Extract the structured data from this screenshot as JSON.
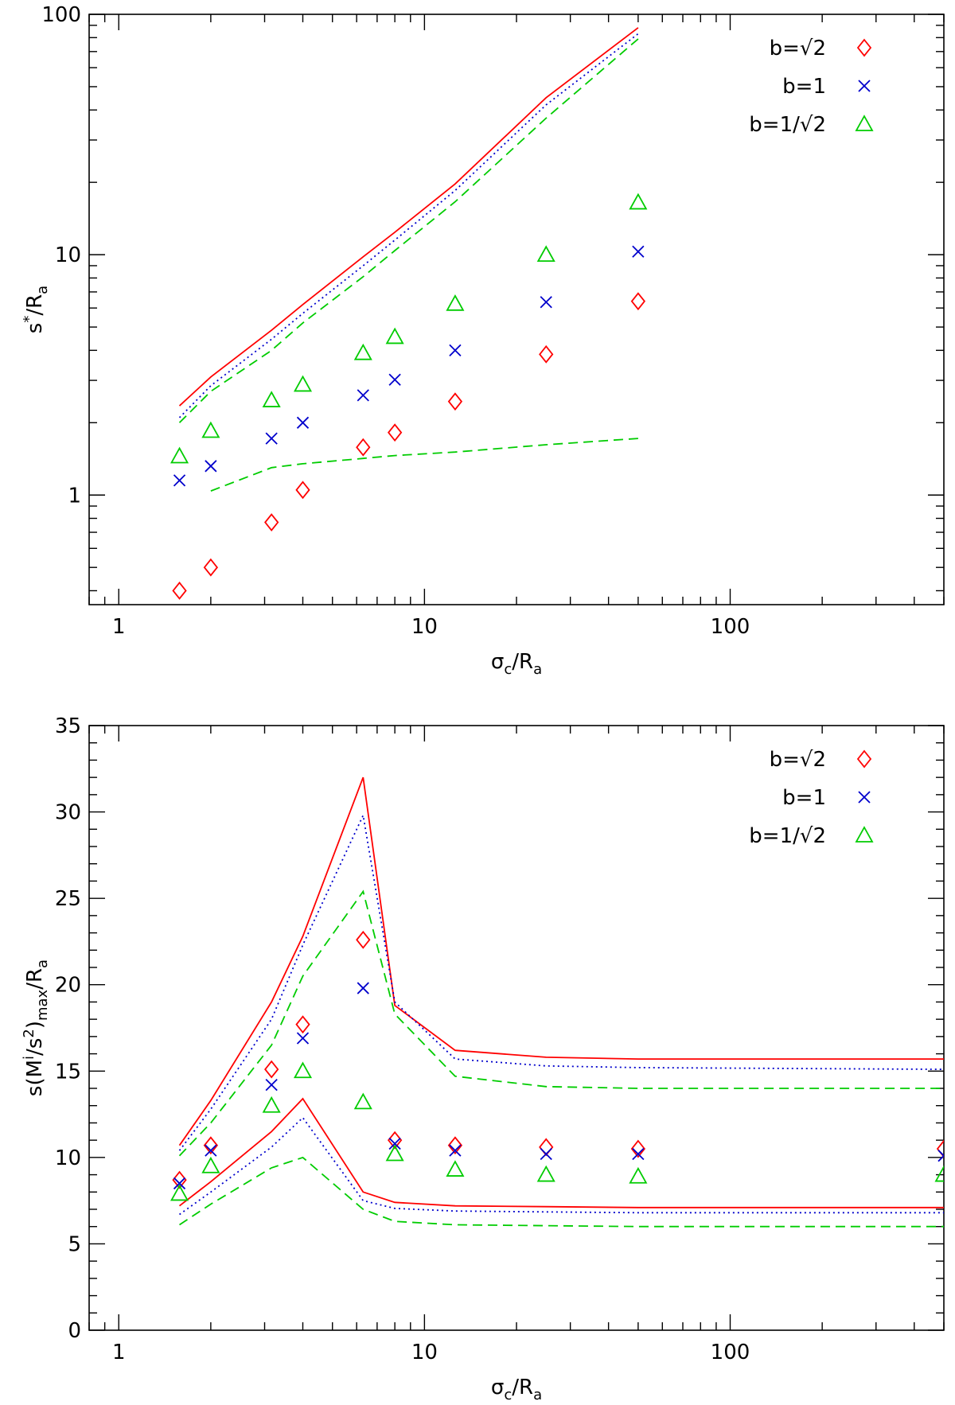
{
  "chart_data": [
    {
      "type": "scatter",
      "title": "",
      "xscale": "log",
      "yscale": "log",
      "xlim": [
        0.8,
        500
      ],
      "ylim": [
        0.35,
        100
      ],
      "xlabel": {
        "main": "σ",
        "sub": "c",
        "mid": "/R",
        "sub2": "a"
      },
      "ylabel": {
        "main": "s",
        "sup": "*",
        "mid": "/R",
        "sub2": "a"
      },
      "xticks": [
        {
          "v": 1,
          "label": "1"
        },
        {
          "v": 10,
          "label": "10"
        },
        {
          "v": 100,
          "label": "100"
        }
      ],
      "yticks": [
        {
          "v": 1,
          "label": "1"
        },
        {
          "v": 10,
          "label": "10"
        },
        {
          "v": 100,
          "label": "100"
        }
      ],
      "legend_position": "top-right",
      "legend": [
        {
          "label": "b=√2",
          "marker": "diamond",
          "color": "#ff0000"
        },
        {
          "label": "b=1",
          "marker": "x",
          "color": "#0000cc"
        },
        {
          "label": "b=1/√2",
          "marker": "triangle",
          "color": "#00cc00"
        }
      ],
      "series": [
        {
          "name": "b=√2",
          "marker": "diamond",
          "color": "#ff0000",
          "x": [
            1.58,
            2.0,
            3.16,
            4.0,
            6.3,
            8.0,
            12.6,
            25,
            50
          ],
          "y": [
            0.4,
            0.5,
            0.77,
            1.05,
            1.58,
            1.82,
            2.45,
            3.85,
            6.4
          ]
        },
        {
          "name": "b=1",
          "marker": "x",
          "color": "#0000cc",
          "x": [
            1.58,
            2.0,
            3.16,
            4.0,
            6.3,
            8.0,
            12.6,
            25,
            50
          ],
          "y": [
            1.15,
            1.32,
            1.72,
            2.0,
            2.6,
            3.02,
            4.0,
            6.35,
            10.3
          ]
        },
        {
          "name": "b=1/√2",
          "marker": "triangle",
          "color": "#00cc00",
          "x": [
            1.58,
            2.0,
            3.16,
            4.0,
            6.3,
            8.0,
            12.6,
            25,
            50
          ],
          "y": [
            1.45,
            1.85,
            2.48,
            2.88,
            3.9,
            4.55,
            6.25,
            10.0,
            16.5
          ]
        }
      ],
      "lines": [
        {
          "color": "#ff0000",
          "style": "solid",
          "x": [
            1.58,
            2.0,
            3.16,
            4.0,
            6.3,
            8.0,
            12.6,
            25,
            50
          ],
          "y": [
            2.35,
            3.1,
            4.85,
            6.2,
            9.8,
            12.4,
            19.7,
            45,
            88
          ]
        },
        {
          "color": "#0000cc",
          "style": "dotted",
          "x": [
            1.58,
            2.0,
            3.16,
            4.0,
            6.3,
            8.0,
            12.6,
            25,
            50
          ],
          "y": [
            2.1,
            2.85,
            4.45,
            5.7,
            9.0,
            11.5,
            18.5,
            42,
            83
          ]
        },
        {
          "color": "#00cc00",
          "style": "dashed",
          "x": [
            1.58,
            2.0,
            3.16,
            4.0,
            6.3,
            8.0,
            12.6,
            25,
            50
          ],
          "y": [
            2.0,
            2.7,
            4.0,
            5.2,
            8.1,
            10.4,
            16.6,
            37,
            79
          ]
        },
        {
          "color": "#00cc00",
          "style": "dashed",
          "x": [
            2.0,
            3.16,
            4.0,
            6.3,
            8.0,
            12.6,
            25,
            50
          ],
          "y": [
            1.04,
            1.3,
            1.35,
            1.42,
            1.46,
            1.51,
            1.62,
            1.72
          ]
        }
      ]
    },
    {
      "type": "scatter",
      "title": "",
      "xscale": "log",
      "yscale": "linear",
      "xlim": [
        0.8,
        500
      ],
      "ylim": [
        0,
        35
      ],
      "xlabel": {
        "main": "σ",
        "sub": "c",
        "mid": "/R",
        "sub2": "a"
      },
      "ylabel": {
        "main": "s(M",
        "sup": "i",
        "mid": "/s",
        "sup2": "2",
        "close": ")",
        "sub": "max",
        "tail": "/R",
        "sub2": "a"
      },
      "xticks": [
        {
          "v": 1,
          "label": "1"
        },
        {
          "v": 10,
          "label": "10"
        },
        {
          "v": 100,
          "label": "100"
        }
      ],
      "yticks": [
        {
          "v": 0,
          "label": "0"
        },
        {
          "v": 5,
          "label": "5"
        },
        {
          "v": 10,
          "label": "10"
        },
        {
          "v": 15,
          "label": "15"
        },
        {
          "v": 20,
          "label": "20"
        },
        {
          "v": 25,
          "label": "25"
        },
        {
          "v": 30,
          "label": "30"
        },
        {
          "v": 35,
          "label": "35"
        }
      ],
      "legend_position": "top-right",
      "legend": [
        {
          "label": "b=√2",
          "marker": "diamond",
          "color": "#ff0000"
        },
        {
          "label": "b=1",
          "marker": "x",
          "color": "#0000cc"
        },
        {
          "label": "b=1/√2",
          "marker": "triangle",
          "color": "#00cc00"
        }
      ],
      "series": [
        {
          "name": "b=√2",
          "marker": "diamond",
          "color": "#ff0000",
          "x": [
            1.58,
            2.0,
            3.16,
            4.0,
            6.3,
            8.0,
            12.6,
            25,
            50,
            500
          ],
          "y": [
            8.7,
            10.7,
            15.1,
            17.7,
            22.6,
            11.0,
            10.7,
            10.6,
            10.5,
            10.5
          ]
        },
        {
          "name": "b=1",
          "marker": "x",
          "color": "#0000cc",
          "x": [
            1.58,
            2.0,
            3.16,
            4.0,
            6.3,
            8.0,
            12.6,
            25,
            50,
            500
          ],
          "y": [
            8.5,
            10.4,
            14.2,
            16.9,
            19.8,
            10.8,
            10.4,
            10.2,
            10.2,
            10.1
          ]
        },
        {
          "name": "b=1/√2",
          "marker": "triangle",
          "color": "#00cc00",
          "x": [
            1.58,
            2.0,
            3.16,
            4.0,
            6.3,
            8.0,
            12.6,
            25,
            50,
            500
          ],
          "y": [
            7.9,
            9.5,
            13.0,
            15.0,
            13.2,
            10.2,
            9.3,
            9.0,
            8.9,
            9.0
          ]
        }
      ],
      "lines": [
        {
          "color": "#ff0000",
          "style": "solid",
          "x": [
            1.58,
            2.0,
            3.16,
            4.0,
            6.3,
            8.0,
            12.6,
            25,
            50,
            500
          ],
          "y": [
            10.7,
            13.3,
            19.0,
            22.8,
            32.0,
            18.8,
            16.2,
            15.8,
            15.7,
            15.7
          ]
        },
        {
          "color": "#0000cc",
          "style": "dotted",
          "x": [
            1.58,
            2.0,
            3.16,
            4.0,
            6.3,
            8.0,
            12.6,
            25,
            50,
            500
          ],
          "y": [
            10.4,
            12.8,
            18.0,
            22.3,
            29.8,
            19.0,
            15.7,
            15.3,
            15.2,
            15.1
          ]
        },
        {
          "color": "#00cc00",
          "style": "dashed",
          "x": [
            1.58,
            2.0,
            3.16,
            4.0,
            6.3,
            8.0,
            12.6,
            25,
            50,
            500
          ],
          "y": [
            10.1,
            12.0,
            16.5,
            20.5,
            25.4,
            18.3,
            14.7,
            14.1,
            14.0,
            14.0
          ]
        },
        {
          "color": "#ff0000",
          "style": "solid",
          "x": [
            1.58,
            2.0,
            3.16,
            4.0,
            6.3,
            8.0,
            12.6,
            25,
            50,
            500
          ],
          "y": [
            7.2,
            8.6,
            11.5,
            13.4,
            8.0,
            7.4,
            7.2,
            7.15,
            7.1,
            7.1
          ]
        },
        {
          "color": "#0000cc",
          "style": "dotted",
          "x": [
            1.58,
            2.0,
            3.16,
            4.0,
            6.3,
            8.0,
            12.6,
            25,
            50,
            500
          ],
          "y": [
            6.7,
            8.0,
            10.6,
            12.3,
            7.5,
            7.05,
            6.9,
            6.85,
            6.8,
            6.8
          ]
        },
        {
          "color": "#00cc00",
          "style": "dashed",
          "x": [
            1.58,
            2.0,
            3.16,
            4.0,
            6.3,
            8.0,
            12.6,
            25,
            50,
            500
          ],
          "y": [
            6.1,
            7.3,
            9.4,
            10.0,
            7.0,
            6.3,
            6.1,
            6.05,
            6.0,
            6.0
          ]
        }
      ]
    }
  ]
}
